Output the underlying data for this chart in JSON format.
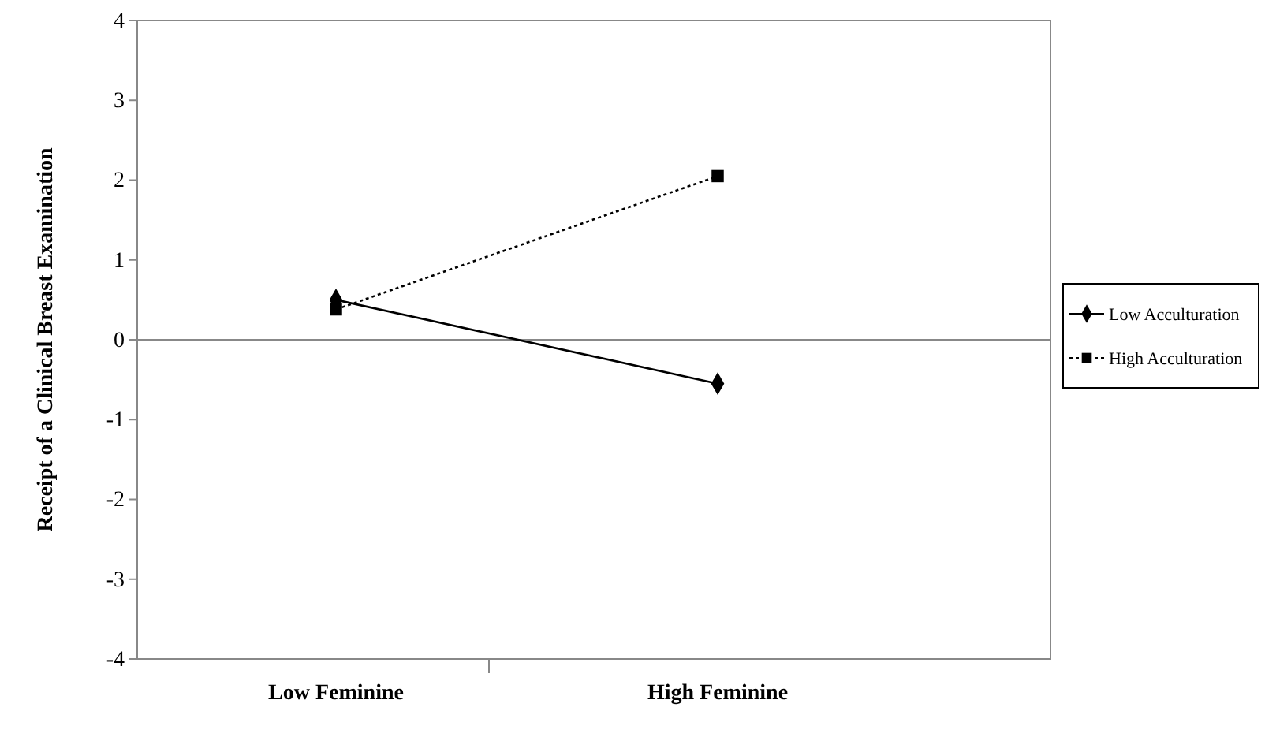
{
  "chart_data": {
    "type": "line",
    "ylabel": "Receipt of a Clinical Breast Examination",
    "categories": [
      "Low Feminine",
      "High Feminine"
    ],
    "series": [
      {
        "name": "Low Acculturation",
        "color": "#000000",
        "values": [
          0.5,
          -0.55
        ],
        "marker": "diamond",
        "line_style": "solid"
      },
      {
        "name": "High Acculturation",
        "color": "#000000",
        "values": [
          0.38,
          2.05
        ],
        "marker": "square",
        "line_style": "dotted"
      }
    ],
    "ylim": [
      -4,
      4
    ],
    "yticks": [
      -4,
      -3,
      -2,
      -1,
      0,
      1,
      2,
      3,
      4
    ],
    "ref_lines": [
      {
        "axis": "y",
        "value": 0
      }
    ],
    "legend": "right"
  }
}
